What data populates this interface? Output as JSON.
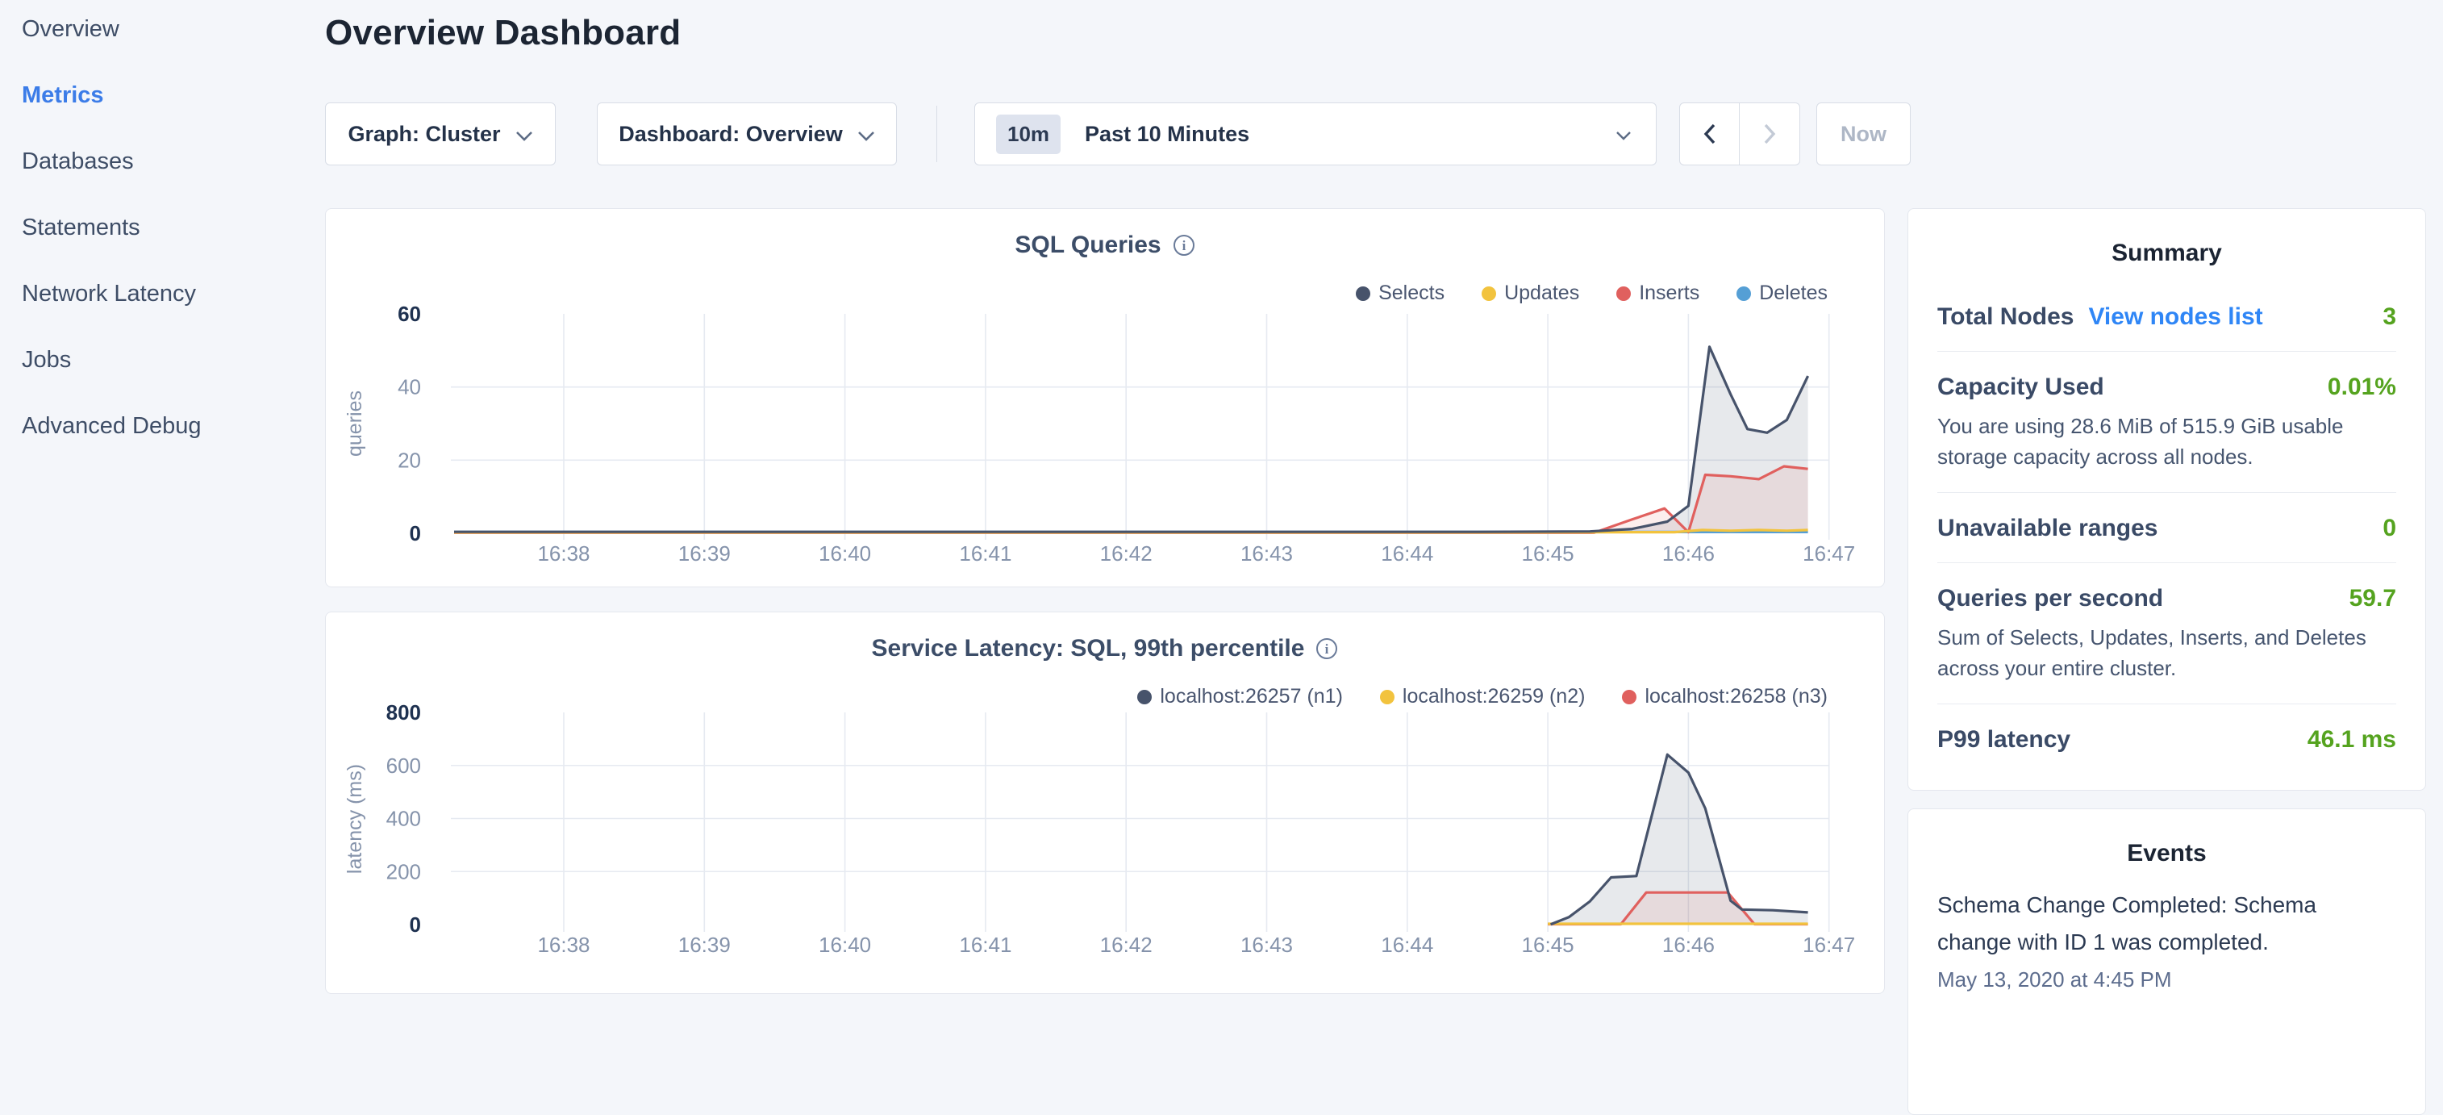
{
  "sidebar": {
    "items": [
      {
        "label": "Overview",
        "active": false
      },
      {
        "label": "Metrics",
        "active": true
      },
      {
        "label": "Databases",
        "active": false
      },
      {
        "label": "Statements",
        "active": false
      },
      {
        "label": "Network Latency",
        "active": false
      },
      {
        "label": "Jobs",
        "active": false
      },
      {
        "label": "Advanced Debug",
        "active": false
      }
    ]
  },
  "header": {
    "title": "Overview Dashboard"
  },
  "controls": {
    "graph_dropdown": {
      "label": "Graph: Cluster"
    },
    "dashboard_dropdown": {
      "label": "Dashboard: Overview"
    },
    "time_selector": {
      "badge": "10m",
      "label": "Past 10 Minutes"
    },
    "prev_label": "previous time window",
    "next_label": "next time window",
    "now_label": "Now"
  },
  "summary": {
    "title": "Summary",
    "rows": [
      {
        "label": "Total Nodes",
        "link": "View nodes list",
        "value": "3"
      },
      {
        "label": "Capacity Used",
        "value": "0.01%",
        "desc": "You are using 28.6 MiB of 515.9 GiB usable storage capacity across all nodes."
      },
      {
        "label": "Unavailable ranges",
        "value": "0"
      },
      {
        "label": "Queries per second",
        "value": "59.7",
        "desc": "Sum of Selects, Updates, Inserts, and Deletes across your entire cluster."
      },
      {
        "label": "P99 latency",
        "value": "46.1 ms"
      }
    ]
  },
  "events": {
    "title": "Events",
    "items": [
      {
        "text": "Schema Change Completed: Schema change with ID 1 was completed.",
        "timestamp": "May 13, 2020 at 4:45 PM"
      }
    ]
  },
  "chart_data": [
    {
      "type": "area",
      "title": "SQL Queries",
      "ylabel": "queries",
      "ylim": [
        0,
        60
      ],
      "y_ticks": [
        0,
        20,
        40,
        60
      ],
      "x_ticks": [
        "16:38",
        "16:39",
        "16:40",
        "16:41",
        "16:42",
        "16:43",
        "16:44",
        "16:45",
        "16:46",
        "16:47"
      ],
      "x_unit": "minutes after 16:38",
      "grid": true,
      "legend_position": "top-right",
      "series": [
        {
          "name": "Selects",
          "color": "#47536b",
          "fill": "rgba(71,83,107,0.13)",
          "points": [
            [
              -0.78,
              0.4
            ],
            [
              3,
              0.4
            ],
            [
              6.5,
              0.4
            ],
            [
              7.3,
              0.5
            ],
            [
              7.6,
              1.2
            ],
            [
              7.85,
              3.2
            ],
            [
              8.0,
              7.5
            ],
            [
              8.15,
              51
            ],
            [
              8.3,
              38
            ],
            [
              8.42,
              28.5
            ],
            [
              8.56,
              27.5
            ],
            [
              8.7,
              31
            ],
            [
              8.85,
              43
            ]
          ]
        },
        {
          "name": "Updates",
          "color": "#f2c33e",
          "points": [
            [
              -0.78,
              0.25
            ],
            [
              6.5,
              0.25
            ],
            [
              7.9,
              0.3
            ],
            [
              8.1,
              0.9
            ],
            [
              8.3,
              0.7
            ],
            [
              8.5,
              0.9
            ],
            [
              8.7,
              0.7
            ],
            [
              8.85,
              0.9
            ]
          ]
        },
        {
          "name": "Inserts",
          "color": "#e0605e",
          "fill": "rgba(224,96,94,0.11)",
          "points": [
            [
              -0.78,
              0.15
            ],
            [
              7.33,
              0.15
            ],
            [
              7.6,
              3.8
            ],
            [
              7.83,
              6.8
            ],
            [
              8.0,
              0.3
            ],
            [
              8.12,
              16
            ],
            [
              8.3,
              15.6
            ],
            [
              8.5,
              14.8
            ],
            [
              8.68,
              18.3
            ],
            [
              8.85,
              17.6
            ]
          ]
        },
        {
          "name": "Deletes",
          "color": "#559fd5",
          "points": [
            [
              -0.78,
              0.35
            ],
            [
              8.85,
              0.35
            ]
          ]
        }
      ]
    },
    {
      "type": "area",
      "title": "Service Latency: SQL, 99th percentile",
      "ylabel": "latency (ms)",
      "ylim": [
        0,
        800
      ],
      "y_ticks": [
        0,
        200,
        400,
        600,
        800
      ],
      "x_ticks": [
        "16:38",
        "16:39",
        "16:40",
        "16:41",
        "16:42",
        "16:43",
        "16:44",
        "16:45",
        "16:46",
        "16:47"
      ],
      "x_unit": "minutes after 16:38",
      "grid": true,
      "legend_position": "top-right",
      "series": [
        {
          "name": "localhost:26257 (n1)",
          "color": "#47536b",
          "fill": "rgba(71,83,107,0.13)",
          "points": [
            [
              7.02,
              1
            ],
            [
              7.15,
              28
            ],
            [
              7.3,
              88
            ],
            [
              7.45,
              178
            ],
            [
              7.63,
              183
            ],
            [
              7.85,
              641
            ],
            [
              8.0,
              573
            ],
            [
              8.12,
              438
            ],
            [
              8.3,
              90
            ],
            [
              8.38,
              57
            ],
            [
              8.6,
              54
            ],
            [
              8.85,
              46
            ]
          ]
        },
        {
          "name": "localhost:26259 (n2)",
          "color": "#f2c33e",
          "points": [
            [
              7.0,
              3
            ],
            [
              8.85,
              3
            ]
          ]
        },
        {
          "name": "localhost:26258 (n3)",
          "color": "#e0605e",
          "fill": "rgba(224,96,94,0.11)",
          "points": [
            [
              7.0,
              1.5
            ],
            [
              7.52,
              1.5
            ],
            [
              7.7,
              121
            ],
            [
              8.28,
              121
            ],
            [
              8.47,
              1.5
            ],
            [
              8.85,
              1.5
            ]
          ]
        }
      ]
    }
  ],
  "colors": {
    "accent_blue": "#3b7ce8",
    "link_blue": "#2f86f6",
    "value_green": "#55a31f",
    "grid": "#e6eaf1",
    "tick_strong": "#1e3150",
    "tick_muted": "#8593ab"
  }
}
